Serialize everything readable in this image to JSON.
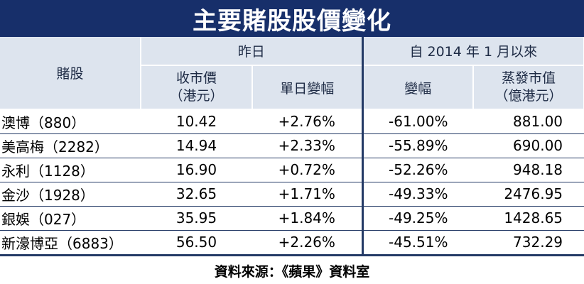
{
  "title": "主要賭股股價變化",
  "headers": {
    "stock": "賭股",
    "yesterday_group": "昨日",
    "since_group": "自 2014 年 1 月以來",
    "close_line1": "收市價",
    "close_line2": "（港元）",
    "daily_change": "單日變幅",
    "change": "變幅",
    "lost_value_line1": "蒸發市值",
    "lost_value_line2": "（億港元）"
  },
  "rows": [
    {
      "name": "澳博（880）",
      "close": "10.42",
      "daily_change": "+2.76%",
      "change": "-61.00%",
      "lost_value": "881.00"
    },
    {
      "name": "美高梅（2282）",
      "close": "14.94",
      "daily_change": "+2.33%",
      "change": "-55.89%",
      "lost_value": "690.00"
    },
    {
      "name": "永利（1128）",
      "close": "16.90",
      "daily_change": "+0.72%",
      "change": "-52.26%",
      "lost_value": "948.18"
    },
    {
      "name": "金沙（1928）",
      "close": "32.65",
      "daily_change": "+1.71%",
      "change": "-49.33%",
      "lost_value": "2476.95"
    },
    {
      "name": "銀娛（027）",
      "close": "35.95",
      "daily_change": "+1.84%",
      "change": "-49.25%",
      "lost_value": "1428.65"
    },
    {
      "name": "新濠博亞（6883）",
      "close": "56.50",
      "daily_change": "+2.26%",
      "change": "-45.51%",
      "lost_value": "732.29"
    }
  ],
  "source": "資料來源：《蘋果》資料室",
  "colors": {
    "title_bg": "#172f6a",
    "header_bg": "#dde4ee",
    "rule": "#243a66"
  }
}
